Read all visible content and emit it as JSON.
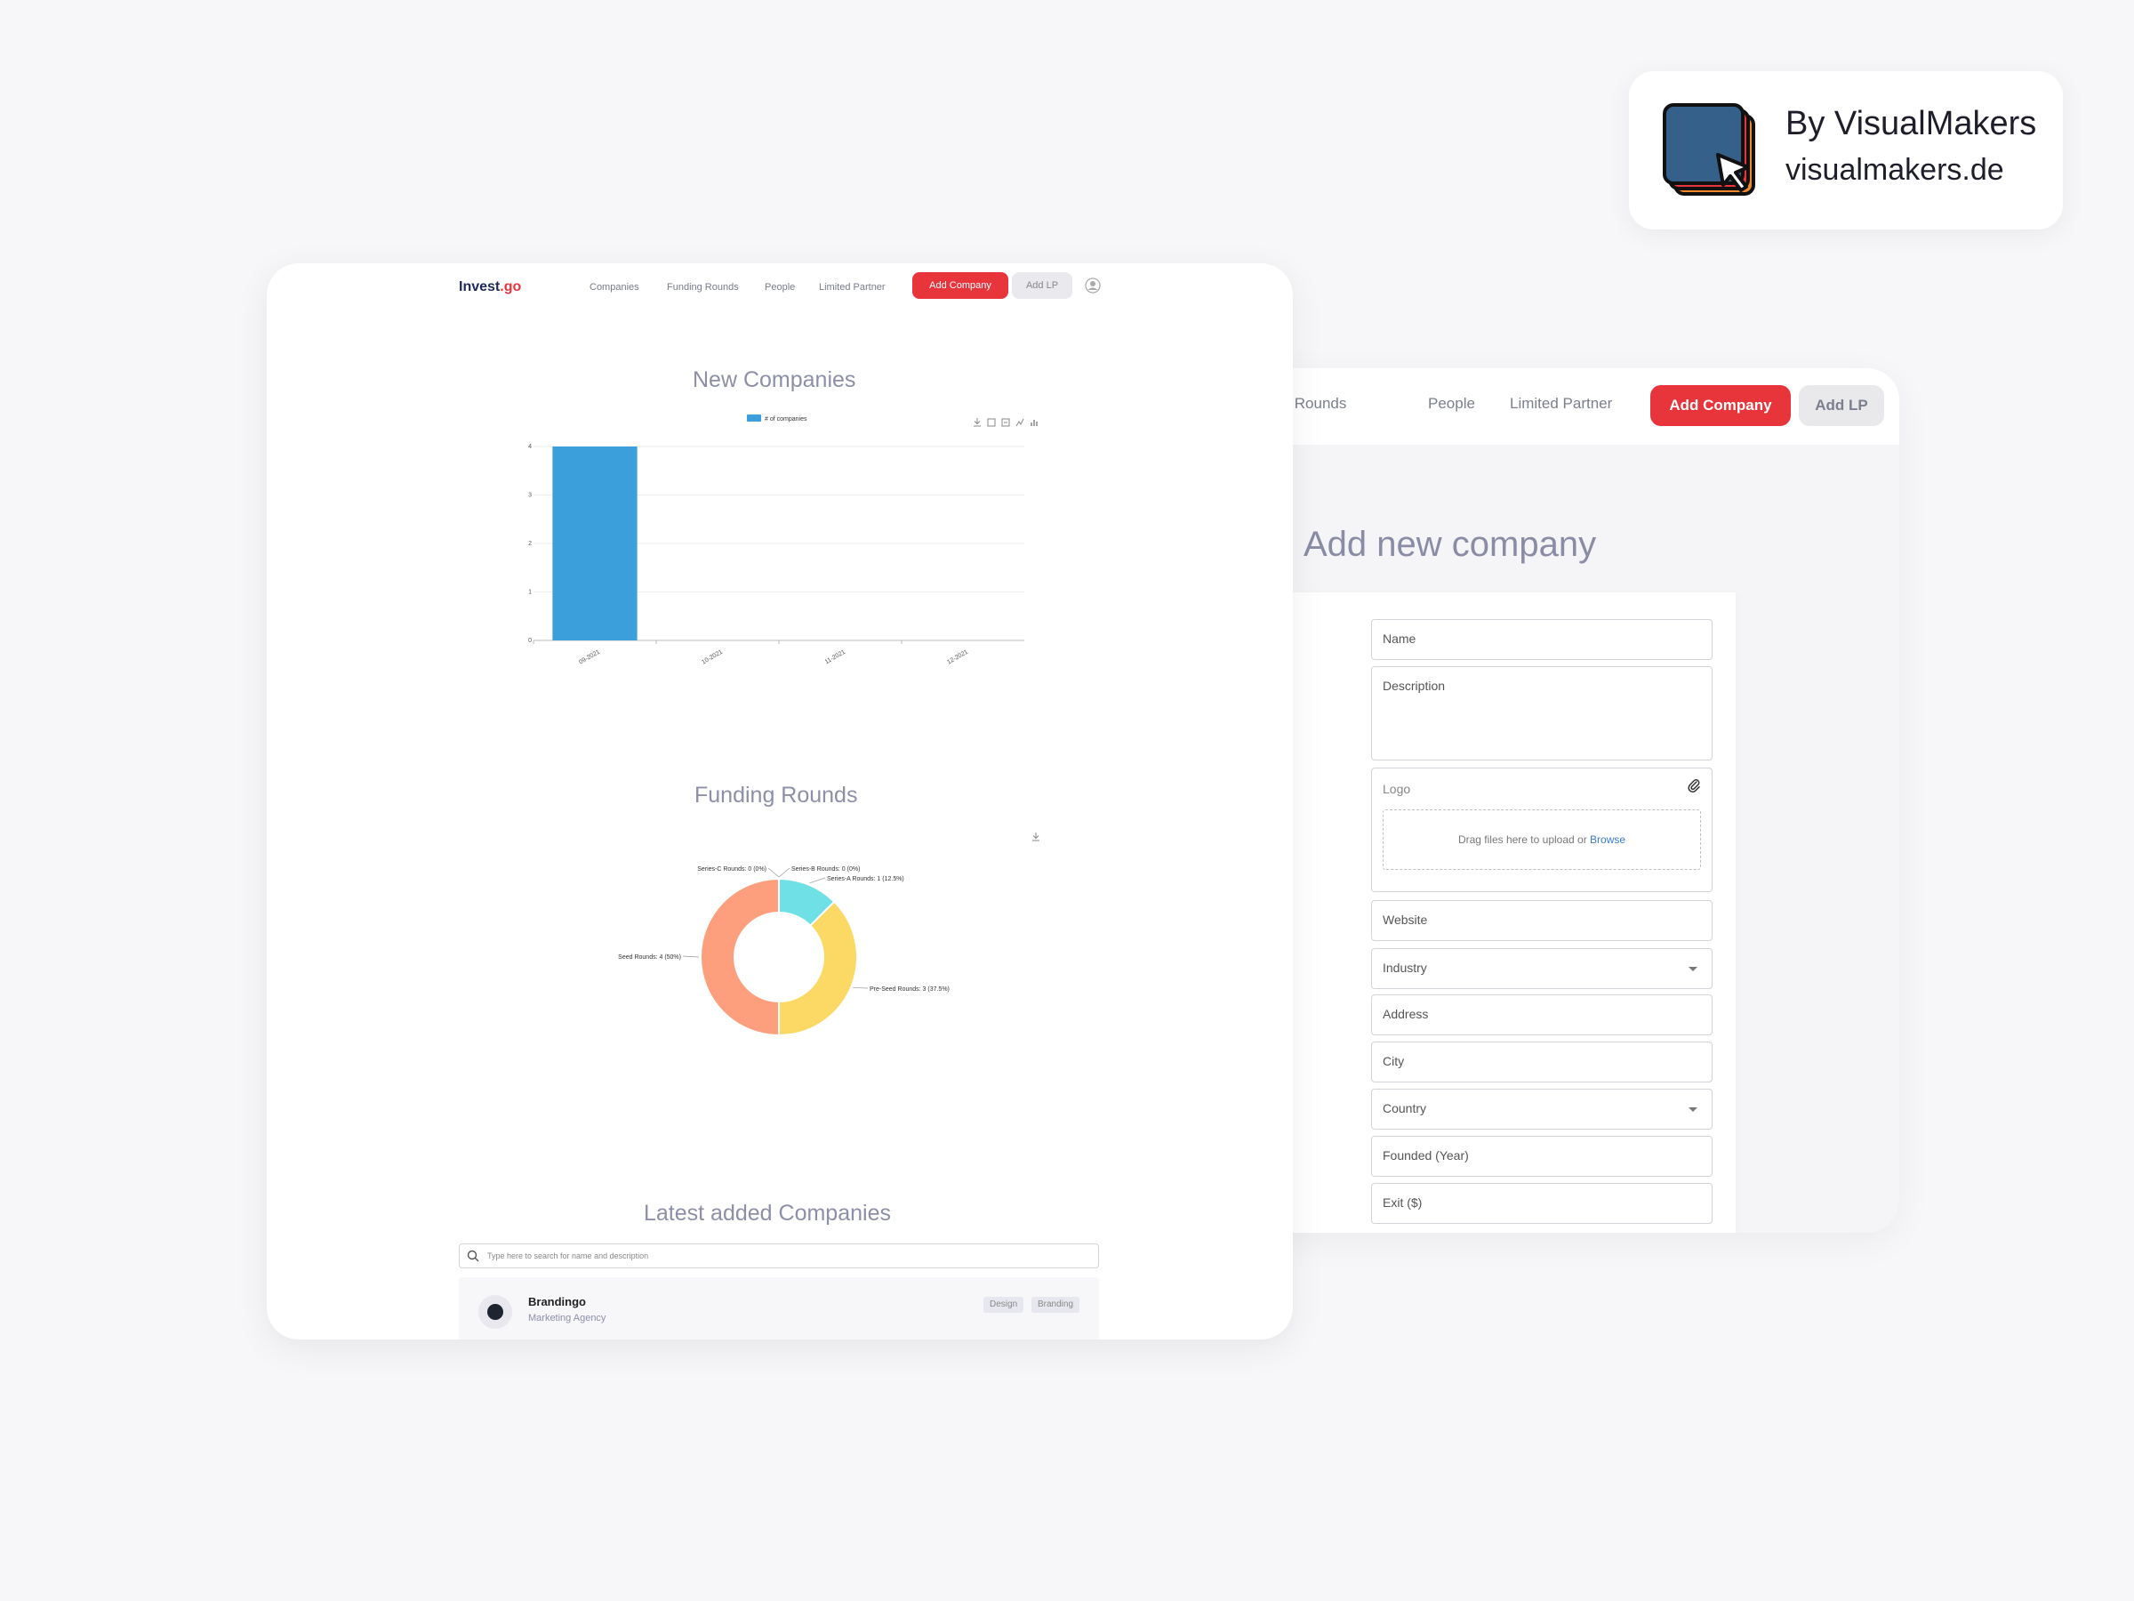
{
  "brand": {
    "by_line": "By VisualMakers",
    "url": "visualmakers.de",
    "colors": {
      "front": "#346089",
      "orange": "#f28a2d",
      "red": "#e8343b"
    }
  },
  "back_window": {
    "nav": {
      "items": [
        "unding Rounds",
        "People",
        "Limited Partner"
      ],
      "add_company": "Add Company",
      "add_lp": "Add LP"
    },
    "title": "Add new company",
    "form": {
      "name": "Name",
      "description": "Description",
      "logo": "Logo",
      "drop_text": "Drag files here to upload or ",
      "browse": "Browse",
      "website": "Website",
      "industry": "Industry",
      "address": "Address",
      "city": "City",
      "country": "Country",
      "founded": "Founded (Year)",
      "exit": "Exit ($)"
    }
  },
  "front_window": {
    "nav": {
      "logo_main": "Invest",
      "logo_accent": ".go",
      "items": [
        "Companies",
        "Funding Rounds",
        "People",
        "Limited Partner"
      ],
      "add_company": "Add Company",
      "add_lp": "Add LP"
    },
    "sections": {
      "new_companies": "New Companies",
      "funding_rounds": "Funding Rounds",
      "latest": "Latest added Companies"
    },
    "search_placeholder": "Type here to search for name and description",
    "companies": [
      {
        "name": "Brandingo",
        "subtitle": "Marketing Agency",
        "tags": [
          "Design",
          "Branding"
        ]
      }
    ]
  },
  "chart_data": [
    {
      "type": "bar",
      "title": "New Companies",
      "legend": "# of companies",
      "categories": [
        "09-2021",
        "10-2021",
        "11-2021",
        "12-2021"
      ],
      "values": [
        4,
        0,
        0,
        0
      ],
      "ylim": [
        0,
        4
      ],
      "yticks": [
        0,
        1,
        2,
        3,
        4
      ],
      "color": "#3a9fdb",
      "grid": true
    },
    {
      "type": "pie",
      "title": "Funding Rounds",
      "donut": true,
      "slices": [
        {
          "label": "Series-B Rounds: 0 (0%)",
          "value": 0,
          "color": "#9fd4f0"
        },
        {
          "label": "Series-A Rounds: 1 (12.5%)",
          "value": 1,
          "color": "#6ee0e6"
        },
        {
          "label": "Pre-Seed Rounds: 3 (37.5%)",
          "value": 3,
          "color": "#fcd965"
        },
        {
          "label": "Seed Rounds: 4 (50%)",
          "value": 4,
          "color": "#fd9e7d"
        },
        {
          "label": "Series-C Rounds: 0 (0%)",
          "value": 0,
          "color": "#c9c9d6"
        }
      ]
    }
  ]
}
